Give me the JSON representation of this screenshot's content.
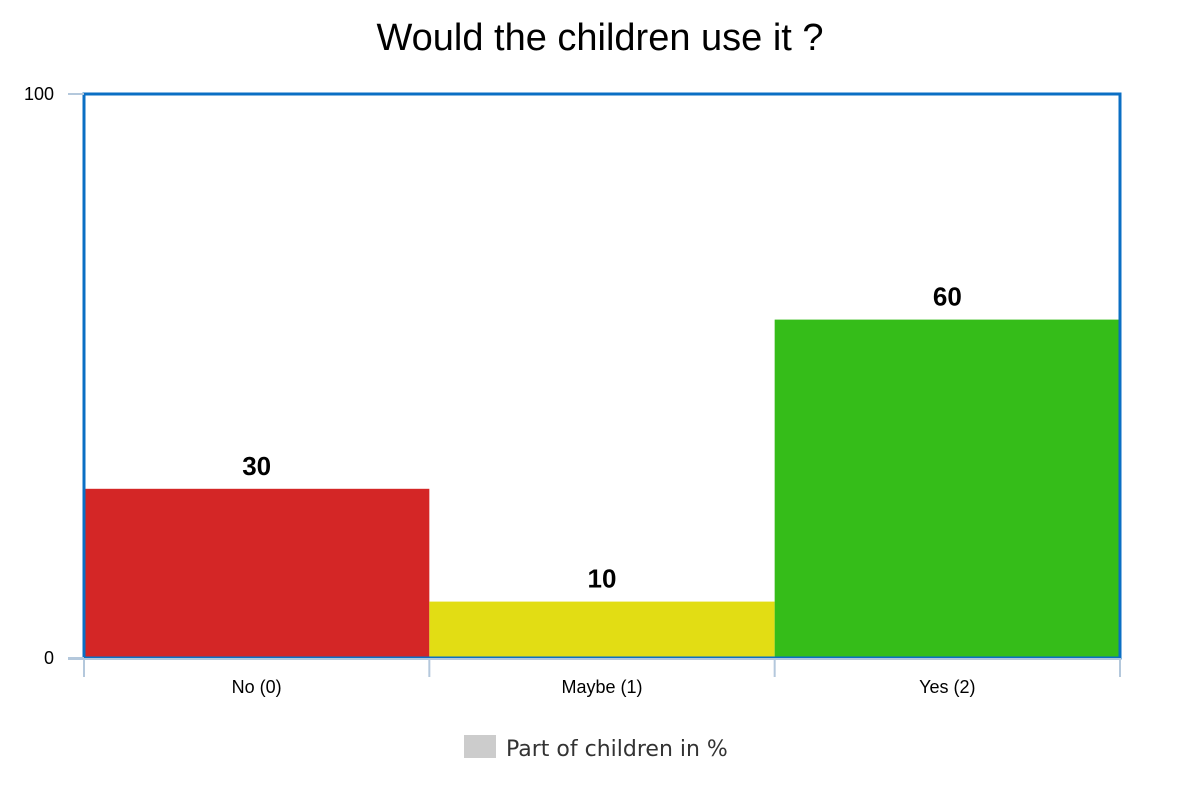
{
  "chart_data": {
    "type": "bar",
    "title": "Would the children use it ?",
    "categories": [
      "No (0)",
      "Maybe (1)",
      "Yes (2)"
    ],
    "series": [
      {
        "name": "Part of children in %",
        "values": [
          30,
          10,
          60
        ]
      }
    ],
    "ylim": [
      0,
      100
    ],
    "yticks": [
      0,
      100
    ],
    "bar_colors": [
      "#d42626",
      "#e2dd14",
      "#35bd19"
    ],
    "frame_color": "#0b6fc4",
    "axis_color": "#b4c8dc",
    "legend_swatch_color": "#cccccc",
    "legend_position": "bottom-center",
    "grid": false
  }
}
